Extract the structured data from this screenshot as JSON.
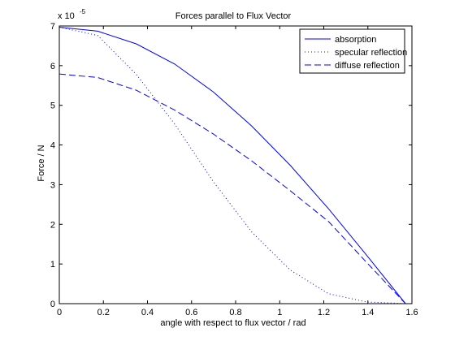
{
  "chart_data": {
    "type": "line",
    "title": "Forces parallel to Flux Vector",
    "xlabel": "angle with respect to flux vector / rad",
    "ylabel": "Force / N",
    "y_scale_factor": {
      "base": "x 10",
      "exponent": "-5"
    },
    "xlim": [
      0,
      1.6
    ],
    "ylim": [
      0,
      7
    ],
    "x_ticks": [
      0,
      0.2,
      0.4,
      0.6,
      0.8,
      1,
      1.2,
      1.4,
      1.6
    ],
    "x_tick_labels": [
      "0",
      "0.2",
      "0.4",
      "0.6",
      "0.8",
      "1",
      "1.2",
      "1.4",
      "1.6"
    ],
    "y_ticks": [
      0,
      1,
      2,
      3,
      4,
      5,
      6,
      7
    ],
    "y_tick_labels": [
      "0",
      "1",
      "2",
      "3",
      "4",
      "5",
      "6",
      "7"
    ],
    "grid": false,
    "legend_position": "top-right",
    "line_color": "#0000ff",
    "series": [
      {
        "name": "absorption",
        "style": "solid",
        "x": [
          0,
          0.1745,
          0.349,
          0.5236,
          0.6981,
          0.8727,
          1.0472,
          1.2217,
          1.3963,
          1.5708
        ],
        "y": [
          6.97,
          6.87,
          6.55,
          6.04,
          5.34,
          4.48,
          3.49,
          2.39,
          1.21,
          0
        ]
      },
      {
        "name": "specular reflection",
        "style": "dotted",
        "x": [
          0,
          0.1745,
          0.349,
          0.5236,
          0.6981,
          0.8727,
          1.0472,
          1.2217,
          1.3963,
          1.5708
        ],
        "y": [
          6.97,
          6.76,
          5.78,
          4.53,
          3.08,
          1.81,
          0.85,
          0.25,
          0.04,
          0
        ]
      },
      {
        "name": "diffuse reflection",
        "style": "dashed",
        "x": [
          0,
          0.1745,
          0.349,
          0.5236,
          0.6981,
          0.8727,
          1.0472,
          1.2217,
          1.3963,
          1.5708
        ],
        "y": [
          5.79,
          5.7,
          5.38,
          4.88,
          4.28,
          3.6,
          2.85,
          2.07,
          1.03,
          0
        ]
      }
    ]
  }
}
